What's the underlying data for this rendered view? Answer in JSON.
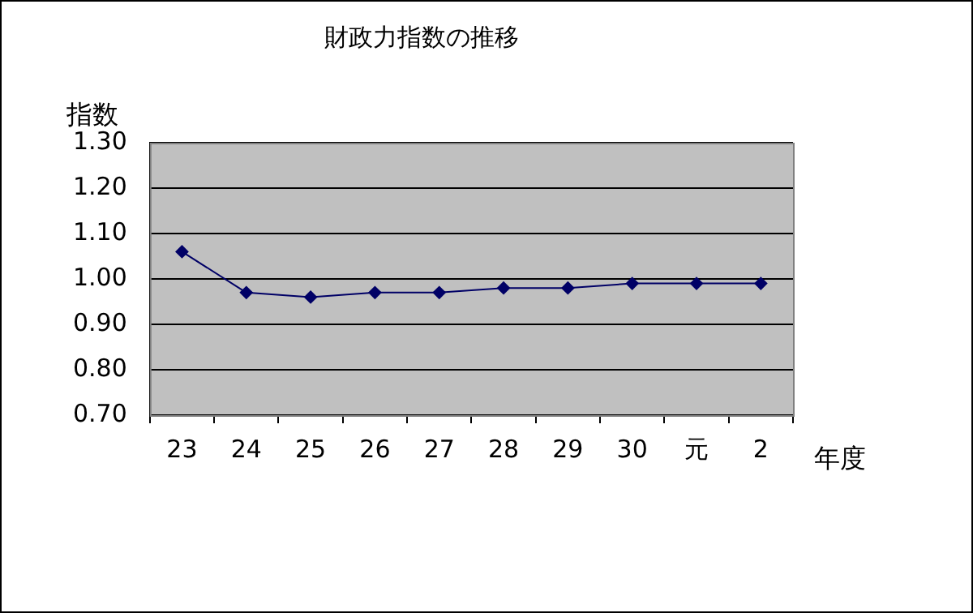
{
  "chart_data": {
    "type": "line",
    "title": "財政力指数の推移",
    "ylabel": "指数",
    "xlabel": "年度",
    "categories": [
      "23",
      "24",
      "25",
      "26",
      "27",
      "28",
      "29",
      "30",
      "元",
      "2"
    ],
    "series": [
      {
        "color": "#000066",
        "values": [
          1.06,
          0.97,
          0.96,
          0.97,
          0.97,
          0.98,
          0.98,
          0.99,
          0.99,
          0.99
        ]
      }
    ],
    "ylim": [
      0.7,
      1.3
    ],
    "yticks": [
      {
        "value": 0.7,
        "label": "0.70"
      },
      {
        "value": 0.8,
        "label": "0.80"
      },
      {
        "value": 0.9,
        "label": "0.90"
      },
      {
        "value": 1.0,
        "label": "1.00"
      },
      {
        "value": 1.1,
        "label": "1.10"
      },
      {
        "value": 1.2,
        "label": "1.20"
      },
      {
        "value": 1.3,
        "label": "1.30"
      }
    ],
    "grid": "y",
    "legend": false,
    "marker": "diamond",
    "line_style": "solid"
  }
}
